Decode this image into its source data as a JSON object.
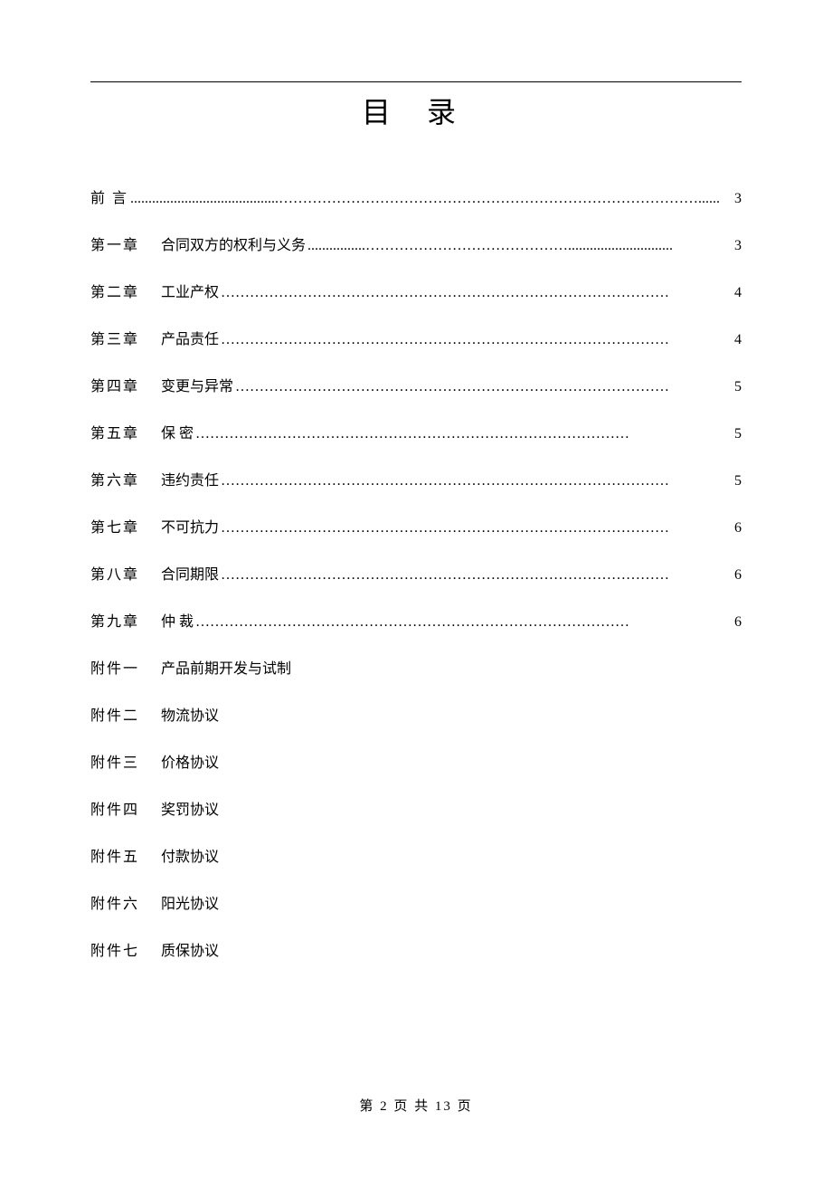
{
  "title": "目  录",
  "toc_entries": [
    {
      "label": "前    言",
      "text": "",
      "dots": ".........................................……………………………………………………………………………......",
      "page": "3"
    },
    {
      "label": "第一章",
      "text": "合同双方的权利与义务",
      "dots": "................…………………………………….............................",
      "page": "3"
    },
    {
      "label": "第二章",
      "text": "工业产权",
      "dots": "…………………………………………………………………………………",
      "page": "4"
    },
    {
      "label": "第三章",
      "text": "产品责任",
      "dots": "…………………………………………………………………………………",
      "page": "4"
    },
    {
      "label": "第四章",
      "text": "变更与异常",
      "dots": "………………………………………………………………………………",
      "page": "5"
    },
    {
      "label": "第五章",
      "text": "保        密",
      "dots": "………………………………………………………………………………",
      "page": "5"
    },
    {
      "label": "第六章",
      "text": "违约责任",
      "dots": "…………………………………………………………………………………",
      "page": "5"
    },
    {
      "label": "第七章",
      "text": "不可抗力",
      "dots": "…………………………………………………………………………………",
      "page": "6"
    },
    {
      "label": "第八章",
      "text": "合同期限",
      "dots": "…………………………………………………………………………………",
      "page": "6"
    },
    {
      "label": "第九章",
      "text": "仲        裁",
      "dots": "………………………………………………………………………………",
      "page": "6"
    }
  ],
  "appendix_entries": [
    {
      "label": "附件一",
      "text": "产品前期开发与试制"
    },
    {
      "label": "附件二",
      "text": "物流协议"
    },
    {
      "label": "附件三",
      "text": "价格协议"
    },
    {
      "label": "附件四",
      "text": "奖罚协议"
    },
    {
      "label": "附件五",
      "text": "付款协议"
    },
    {
      "label": "附件六",
      "text": "阳光协议"
    },
    {
      "label": "附件七",
      "text": "质保协议"
    }
  ],
  "footer": "第 2 页 共 13 页"
}
